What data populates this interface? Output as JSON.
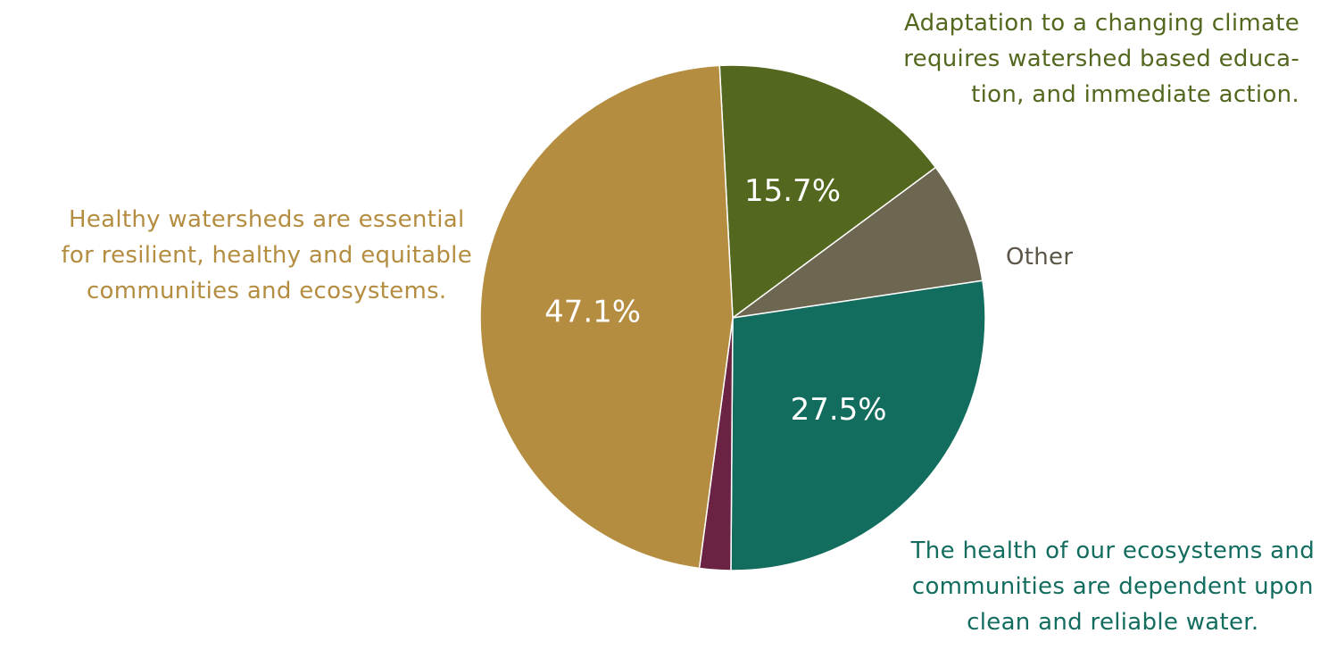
{
  "chart_data": {
    "type": "pie",
    "start_angle_deg": -3,
    "direction": "clockwise",
    "slices": [
      {
        "label": "Adaptation to a changing climate requires watershed based education, and immediate action.",
        "value": 15.7,
        "value_label": "15.7%",
        "color": "#53681e"
      },
      {
        "label": "Other",
        "value": 7.8,
        "value_label": "",
        "color": "#6d6650"
      },
      {
        "label": "The health of our ecosystems and communities are dependent upon clean and reliable water.",
        "value": 27.5,
        "value_label": "27.5%",
        "color": "#136d5f"
      },
      {
        "label": "",
        "value": 2.0,
        "value_label": "",
        "color": "#6b2344"
      },
      {
        "label": "Healthy watersheds are essential for resilient, healthy and equitable communities and ecosystems.",
        "value": 47.1,
        "value_label": "47.1%",
        "color": "#b48d40"
      }
    ]
  },
  "callouts": {
    "healthy": {
      "lines": [
        "Healthy watersheds are essential",
        "for resilient, healthy and equitable",
        "communities and ecosystems."
      ],
      "color": "#b48d40"
    },
    "adaptation": {
      "lines": [
        "Adaptation to a changing climate",
        "requires watershed based educa-",
        "tion, and immediate action."
      ],
      "color": "#53681e"
    },
    "health_of_ecosystems": {
      "lines": [
        "The health of our ecosystems and",
        "communities are dependent upon",
        "clean and reliable water."
      ],
      "color": "#136d5f"
    },
    "other": {
      "lines": [
        "Other"
      ],
      "color": "#5c5648"
    }
  }
}
